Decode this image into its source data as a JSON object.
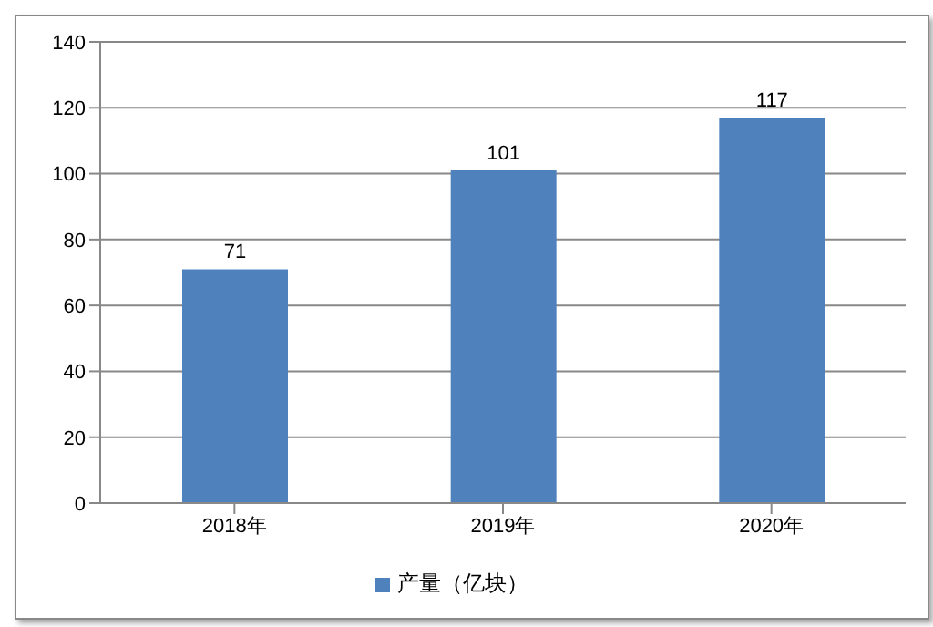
{
  "chart_data": {
    "type": "bar",
    "categories": [
      "2018年",
      "2019年",
      "2020年"
    ],
    "series": [
      {
        "name": "产量（亿块）",
        "color": "#4f81bd",
        "values": [
          71,
          101,
          117
        ]
      }
    ],
    "ylim": [
      0,
      140
    ],
    "yticks": [
      0,
      20,
      40,
      60,
      80,
      100,
      120,
      140
    ],
    "grid": "y",
    "legend": "bottom",
    "data_labels": true
  }
}
